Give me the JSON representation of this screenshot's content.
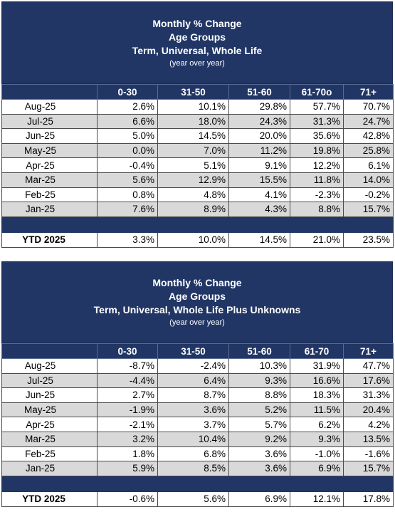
{
  "tables": [
    {
      "title_lines": [
        "Monthly % Change",
        "Age Groups",
        "Term, Universal, Whole Life"
      ],
      "subtitle": "(year over year)",
      "columns": [
        "",
        "0-30",
        "31-50",
        "51-60",
        "61-70o",
        "71+"
      ],
      "rows": [
        {
          "label": "Aug-25",
          "values": [
            "2.6%",
            "10.1%",
            "29.8%",
            "57.7%",
            "70.7%"
          ]
        },
        {
          "label": "Jul-25",
          "values": [
            "6.6%",
            "18.0%",
            "24.3%",
            "31.3%",
            "24.7%"
          ]
        },
        {
          "label": "Jun-25",
          "values": [
            "5.0%",
            "14.5%",
            "20.0%",
            "35.6%",
            "42.8%"
          ]
        },
        {
          "label": "May-25",
          "values": [
            "0.0%",
            "7.0%",
            "11.2%",
            "19.8%",
            "25.8%"
          ]
        },
        {
          "label": "Apr-25",
          "values": [
            "-0.4%",
            "5.1%",
            "9.1%",
            "12.2%",
            "6.1%"
          ]
        },
        {
          "label": "Mar-25",
          "values": [
            "5.6%",
            "12.9%",
            "15.5%",
            "11.8%",
            "14.0%"
          ]
        },
        {
          "label": "Feb-25",
          "values": [
            "0.8%",
            "4.8%",
            "4.1%",
            "-2.3%",
            "-0.2%"
          ]
        },
        {
          "label": "Jan-25",
          "values": [
            "7.6%",
            "8.9%",
            "4.3%",
            "8.8%",
            "15.7%"
          ]
        }
      ],
      "ytd": {
        "label": "YTD 2025",
        "values": [
          "3.3%",
          "10.0%",
          "14.5%",
          "21.0%",
          "23.5%"
        ]
      }
    },
    {
      "title_lines": [
        "Monthly % Change",
        "Age Groups",
        "Term, Universal, Whole Life Plus Unknowns"
      ],
      "subtitle": "(year over year)",
      "columns": [
        "",
        "0-30",
        "31-50",
        "51-60",
        "61-70",
        "71+"
      ],
      "rows": [
        {
          "label": "Aug-25",
          "values": [
            "-8.7%",
            "-2.4%",
            "10.3%",
            "31.9%",
            "47.7%"
          ]
        },
        {
          "label": "Jul-25",
          "values": [
            "-4.4%",
            "6.4%",
            "9.3%",
            "16.6%",
            "17.6%"
          ]
        },
        {
          "label": "Jun-25",
          "values": [
            "2.7%",
            "8.7%",
            "8.8%",
            "18.3%",
            "31.3%"
          ]
        },
        {
          "label": "May-25",
          "values": [
            "-1.9%",
            "3.6%",
            "5.2%",
            "11.5%",
            "20.4%"
          ]
        },
        {
          "label": "Apr-25",
          "values": [
            "-2.1%",
            "3.7%",
            "5.7%",
            "6.2%",
            "4.2%"
          ]
        },
        {
          "label": "Mar-25",
          "values": [
            "3.2%",
            "10.4%",
            "9.2%",
            "9.3%",
            "13.5%"
          ]
        },
        {
          "label": "Feb-25",
          "values": [
            "1.8%",
            "6.8%",
            "3.6%",
            "-1.0%",
            "-1.6%"
          ]
        },
        {
          "label": "Jan-25",
          "values": [
            "5.9%",
            "8.5%",
            "3.6%",
            "6.9%",
            "15.7%"
          ]
        }
      ],
      "ytd": {
        "label": "YTD 2025",
        "values": [
          "-0.6%",
          "5.6%",
          "6.9%",
          "12.1%",
          "17.8%"
        ]
      }
    }
  ],
  "colors": {
    "header_navy": "#213665",
    "row_shade": "#d9d9d9",
    "grid": "#4a4a4a"
  }
}
